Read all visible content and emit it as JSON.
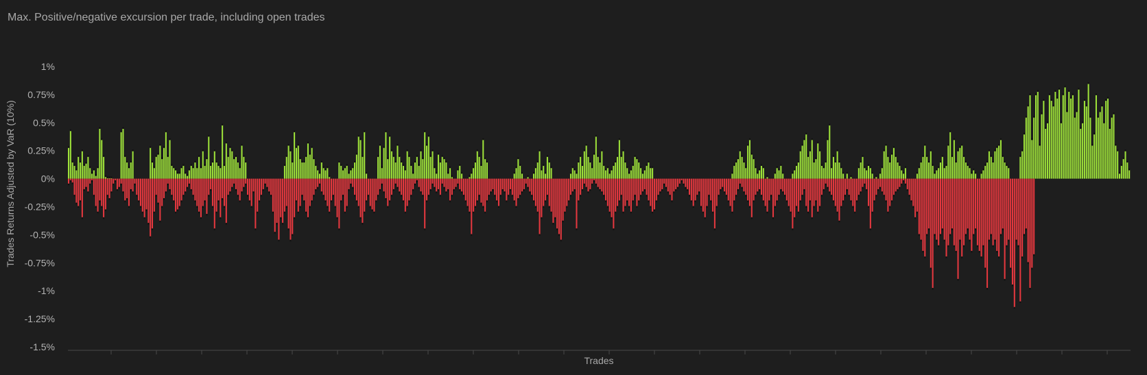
{
  "chart_data": {
    "type": "bar",
    "title": "Max. Positive/negative excursion per trade, including open trades",
    "xlabel": "Trades",
    "ylabel": "Trades Returns Adjusted by VaR (10%)",
    "ylim": [
      -1.5,
      1.0
    ],
    "yticks": [
      {
        "value": 1.0,
        "label": "1%"
      },
      {
        "value": 0.75,
        "label": "0.75%"
      },
      {
        "value": 0.5,
        "label": "0.5%"
      },
      {
        "value": 0.25,
        "label": "0.25%"
      },
      {
        "value": 0.0,
        "label": "0%"
      },
      {
        "value": -0.25,
        "label": "-0.25%"
      },
      {
        "value": -0.5,
        "label": "-0.5%"
      },
      {
        "value": -0.75,
        "label": "-0.75%"
      },
      {
        "value": -1.0,
        "label": "-1%"
      },
      {
        "value": -1.25,
        "label": "-1.25%"
      },
      {
        "value": -1.5,
        "label": "-1.5%"
      }
    ],
    "grid": false,
    "colors": {
      "positive": "#9ee23a",
      "negative": "#e5383f",
      "marker": "#111111",
      "axis": "#4a4a4a"
    },
    "series": [
      {
        "values": [
          0.28,
          0.43,
          0.15,
          0.12,
          0.08,
          0.2,
          0.15,
          0.25,
          0.12,
          0.14,
          0.2,
          0.1,
          0.05,
          0.08,
          0.03,
          0.1,
          0.45,
          0.35,
          0.2,
          0.02,
          0.01,
          0.01,
          0.01,
          0.0,
          0.0,
          0.0,
          0.0,
          0.42,
          0.45,
          0.2,
          0.15,
          0.1,
          0.15,
          0.25,
          0.0,
          0.0,
          0.0,
          0.0,
          0.0,
          0.0,
          0.0,
          0.0,
          0.28,
          0.15,
          0.1,
          0.2,
          0.22,
          0.3,
          0.18,
          0.28,
          0.42,
          0.2,
          0.35,
          0.12,
          0.1,
          0.08,
          0.05,
          0.05,
          0.1,
          0.12,
          0.05,
          0.03,
          0.08,
          0.12,
          0.1,
          0.15,
          0.1,
          0.2,
          0.1,
          0.25,
          0.12,
          0.18,
          0.38,
          0.12,
          0.15,
          0.25,
          0.15,
          0.12,
          0.1,
          0.48,
          0.12,
          0.32,
          0.2,
          0.28,
          0.25,
          0.18,
          0.2,
          0.15,
          0.1,
          0.3,
          0.2,
          0.15,
          0.0,
          0.0,
          0.0,
          0.0,
          0.0,
          0.0,
          0.0,
          0.0,
          0.0,
          0.0,
          0.0,
          0.0,
          0.0,
          0.0,
          0.0,
          0.0,
          0.0,
          0.0,
          0.0,
          0.12,
          0.2,
          0.3,
          0.25,
          0.15,
          0.42,
          0.28,
          0.3,
          0.18,
          0.15,
          0.15,
          0.2,
          0.32,
          0.22,
          0.28,
          0.18,
          0.12,
          0.08,
          0.05,
          0.15,
          0.1,
          0.08,
          0.1,
          0.02,
          0.0,
          0.0,
          0.0,
          0.0,
          0.15,
          0.12,
          0.08,
          0.1,
          0.12,
          0.05,
          0.08,
          0.1,
          0.15,
          0.22,
          0.38,
          0.35,
          0.2,
          0.42,
          0.05,
          0.0,
          0.0,
          0.0,
          0.0,
          0.0,
          0.2,
          0.3,
          0.1,
          0.28,
          0.42,
          0.18,
          0.38,
          0.25,
          0.2,
          0.15,
          0.3,
          0.2,
          0.15,
          0.12,
          0.08,
          0.25,
          0.2,
          0.12,
          0.05,
          0.15,
          0.2,
          0.12,
          0.25,
          0.18,
          0.42,
          0.3,
          0.38,
          0.2,
          0.25,
          0.1,
          0.05,
          0.22,
          0.15,
          0.2,
          0.18,
          0.15,
          0.05,
          0.1,
          0.02,
          0.0,
          0.0,
          0.08,
          0.12,
          0.05,
          0.0,
          0.0,
          0.0,
          0.02,
          0.05,
          0.1,
          0.15,
          0.25,
          0.2,
          0.12,
          0.35,
          0.18,
          0.15,
          0.0,
          0.0,
          0.0,
          0.0,
          0.0,
          0.0,
          0.0,
          0.0,
          0.0,
          0.0,
          0.0,
          0.0,
          0.0,
          0.05,
          0.1,
          0.18,
          0.12,
          0.05,
          0.0,
          0.0,
          0.02,
          0.0,
          0.0,
          0.05,
          0.1,
          0.15,
          0.25,
          0.08,
          0.12,
          0.05,
          0.2,
          0.15,
          0.1,
          0.0,
          0.0,
          0.0,
          0.0,
          0.0,
          0.0,
          0.0,
          0.0,
          0.0,
          0.05,
          0.1,
          0.08,
          0.05,
          0.15,
          0.2,
          0.12,
          0.25,
          0.3,
          0.2,
          0.15,
          0.1,
          0.22,
          0.38,
          0.2,
          0.15,
          0.25,
          0.12,
          0.08,
          0.1,
          0.05,
          0.08,
          0.12,
          0.15,
          0.2,
          0.35,
          0.2,
          0.25,
          0.15,
          0.1,
          0.05,
          0.08,
          0.12,
          0.2,
          0.18,
          0.15,
          0.1,
          0.05,
          0.08,
          0.12,
          0.15,
          0.1,
          0.1,
          0.0,
          0.0,
          0.0,
          0.0,
          0.0,
          0.0,
          0.0,
          0.0,
          0.0,
          0.0,
          0.0,
          0.0,
          0.0,
          0.0,
          0.0,
          0.0,
          0.0,
          0.0,
          0.0,
          0.0,
          0.0,
          0.0,
          0.0,
          0.0,
          0.0,
          0.0,
          0.0,
          0.0,
          0.0,
          0.0,
          0.0,
          0.0,
          0.0,
          0.0,
          0.0,
          0.0,
          0.0,
          0.0,
          0.0,
          0.0,
          0.05,
          0.12,
          0.15,
          0.18,
          0.25,
          0.2,
          0.15,
          0.1,
          0.3,
          0.35,
          0.22,
          0.18,
          0.1,
          0.05,
          0.08,
          0.12,
          0.1,
          0.0,
          0.02,
          0.0,
          0.0,
          0.0,
          0.05,
          0.1,
          0.08,
          0.12,
          0.05,
          0.0,
          0.0,
          0.0,
          0.0,
          0.05,
          0.08,
          0.12,
          0.15,
          0.25,
          0.3,
          0.35,
          0.4,
          0.2,
          0.25,
          0.35,
          0.15,
          0.18,
          0.32,
          0.25,
          0.12,
          0.1,
          0.15,
          0.35,
          0.48,
          0.1,
          0.2,
          0.15,
          0.25,
          0.15,
          0.1,
          0.05,
          0.0,
          0.05,
          0.0,
          0.02,
          0.0,
          0.0,
          0.0,
          0.1,
          0.15,
          0.2,
          0.1,
          0.08,
          0.12,
          0.1,
          0.05,
          0.0,
          0.02,
          0.0,
          0.05,
          0.1,
          0.25,
          0.3,
          0.2,
          0.15,
          0.22,
          0.28,
          0.2,
          0.15,
          0.12,
          0.08,
          0.05,
          0.1,
          0.0,
          0.0,
          0.0,
          0.0,
          0.0,
          0.05,
          0.1,
          0.15,
          0.2,
          0.3,
          0.2,
          0.15,
          0.25,
          0.12,
          0.05,
          0.08,
          0.1,
          0.15,
          0.2,
          0.1,
          0.12,
          0.3,
          0.42,
          0.2,
          0.35,
          0.15,
          0.25,
          0.28,
          0.3,
          0.2,
          0.15,
          0.12,
          0.1,
          0.05,
          0.08,
          0.05,
          0.0,
          0.0,
          0.05,
          0.08,
          0.12,
          0.15,
          0.25,
          0.2,
          0.15,
          0.25,
          0.28,
          0.3,
          0.35,
          0.2,
          0.15,
          0.12,
          0.1,
          0.0,
          0.0,
          0.0,
          0.0,
          0.0,
          0.2,
          0.25,
          0.4,
          0.55,
          0.65,
          0.75,
          0.35,
          0.55,
          0.75,
          0.78,
          0.3,
          0.58,
          0.7,
          0.45,
          0.5,
          0.75,
          0.7,
          0.65,
          0.78,
          0.72,
          0.8,
          0.5,
          0.75,
          0.82,
          0.6,
          0.78,
          0.72,
          0.75,
          0.55,
          0.6,
          0.8,
          0.45,
          0.5,
          0.7,
          0.65,
          0.85,
          0.55,
          0.3,
          0.4,
          0.75,
          0.55,
          0.6,
          0.65,
          0.5,
          0.7,
          0.72,
          0.45,
          0.55,
          0.58,
          0.3,
          0.25,
          0.05,
          0.12,
          0.18,
          0.25,
          0.15,
          0.08
        ]
      },
      {
        "values": [
          -0.05,
          -0.02,
          -0.04,
          -0.15,
          -0.22,
          -0.25,
          -0.2,
          -0.35,
          -0.1,
          -0.08,
          -0.12,
          -0.05,
          -0.02,
          -0.15,
          -0.25,
          -0.3,
          -0.2,
          -0.25,
          -0.35,
          -0.28,
          -0.15,
          -0.18,
          -0.12,
          -0.05,
          -0.02,
          -0.1,
          -0.08,
          -0.05,
          -0.12,
          -0.2,
          -0.18,
          -0.25,
          -0.1,
          -0.12,
          -0.05,
          -0.15,
          -0.2,
          -0.25,
          -0.3,
          -0.35,
          -0.28,
          -0.4,
          -0.52,
          -0.45,
          -0.3,
          -0.15,
          -0.22,
          -0.38,
          -0.25,
          -0.18,
          -0.12,
          -0.05,
          -0.1,
          -0.15,
          -0.2,
          -0.3,
          -0.28,
          -0.25,
          -0.2,
          -0.15,
          -0.12,
          -0.08,
          -0.05,
          -0.1,
          -0.15,
          -0.2,
          -0.25,
          -0.3,
          -0.35,
          -0.25,
          -0.2,
          -0.32,
          -0.15,
          -0.1,
          -0.25,
          -0.45,
          -0.3,
          -0.2,
          -0.35,
          -0.18,
          -0.25,
          -0.4,
          -0.15,
          -0.12,
          -0.08,
          -0.05,
          -0.1,
          -0.15,
          -0.2,
          -0.12,
          -0.08,
          -0.05,
          -0.15,
          -0.2,
          -0.25,
          -0.12,
          -0.45,
          -0.3,
          -0.2,
          -0.15,
          -0.1,
          -0.05,
          -0.08,
          -0.12,
          -0.15,
          -0.3,
          -0.48,
          -0.4,
          -0.55,
          -0.35,
          -0.4,
          -0.3,
          -0.25,
          -0.45,
          -0.55,
          -0.5,
          -0.35,
          -0.2,
          -0.3,
          -0.25,
          -0.15,
          -0.2,
          -0.3,
          -0.35,
          -0.25,
          -0.2,
          -0.15,
          -0.1,
          -0.08,
          -0.05,
          -0.12,
          -0.15,
          -0.2,
          -0.25,
          -0.3,
          -0.2,
          -0.15,
          -0.25,
          -0.35,
          -0.45,
          -0.2,
          -0.15,
          -0.3,
          -0.25,
          -0.1,
          -0.05,
          -0.08,
          -0.15,
          -0.2,
          -0.25,
          -0.35,
          -0.4,
          -0.3,
          -0.2,
          -0.15,
          -0.25,
          -0.28,
          -0.3,
          -0.2,
          -0.15,
          -0.1,
          -0.05,
          -0.12,
          -0.18,
          -0.25,
          -0.2,
          -0.15,
          -0.1,
          -0.05,
          -0.08,
          -0.12,
          -0.15,
          -0.2,
          -0.3,
          -0.25,
          -0.2,
          -0.15,
          -0.1,
          -0.05,
          -0.02,
          -0.08,
          -0.12,
          -0.15,
          -0.45,
          -0.2,
          -0.15,
          -0.1,
          -0.05,
          -0.08,
          -0.12,
          -0.1,
          -0.15,
          -0.05,
          -0.08,
          -0.12,
          -0.1,
          -0.2,
          -0.15,
          -0.1,
          -0.08,
          -0.05,
          -0.1,
          -0.12,
          -0.15,
          -0.2,
          -0.25,
          -0.3,
          -0.5,
          -0.3,
          -0.25,
          -0.2,
          -0.15,
          -0.22,
          -0.25,
          -0.3,
          -0.2,
          -0.15,
          -0.12,
          -0.1,
          -0.15,
          -0.2,
          -0.25,
          -0.15,
          -0.1,
          -0.12,
          -0.2,
          -0.15,
          -0.1,
          -0.15,
          -0.2,
          -0.25,
          -0.18,
          -0.15,
          -0.12,
          -0.1,
          -0.05,
          -0.08,
          -0.12,
          -0.15,
          -0.2,
          -0.25,
          -0.3,
          -0.5,
          -0.35,
          -0.25,
          -0.2,
          -0.15,
          -0.25,
          -0.3,
          -0.4,
          -0.35,
          -0.45,
          -0.5,
          -0.55,
          -0.38,
          -0.3,
          -0.25,
          -0.2,
          -0.15,
          -0.12,
          -0.1,
          -0.45,
          -0.2,
          -0.15,
          -0.1,
          -0.05,
          -0.08,
          -0.12,
          -0.1,
          -0.05,
          -0.02,
          -0.05,
          -0.08,
          -0.1,
          -0.12,
          -0.15,
          -0.2,
          -0.25,
          -0.3,
          -0.35,
          -0.45,
          -0.3,
          -0.25,
          -0.2,
          -0.15,
          -0.3,
          -0.25,
          -0.2,
          -0.25,
          -0.3,
          -0.2,
          -0.15,
          -0.25,
          -0.2,
          -0.15,
          -0.12,
          -0.1,
          -0.15,
          -0.2,
          -0.25,
          -0.3,
          -0.28,
          -0.2,
          -0.15,
          -0.12,
          -0.1,
          -0.05,
          -0.08,
          -0.12,
          -0.15,
          -0.2,
          -0.12,
          -0.1,
          -0.08,
          -0.05,
          -0.02,
          -0.05,
          -0.08,
          -0.1,
          -0.15,
          -0.2,
          -0.25,
          -0.2,
          -0.15,
          -0.12,
          -0.25,
          -0.3,
          -0.35,
          -0.25,
          -0.15,
          -0.2,
          -0.3,
          -0.45,
          -0.25,
          -0.15,
          -0.1,
          -0.08,
          -0.12,
          -0.15,
          -0.2,
          -0.25,
          -0.3,
          -0.2,
          -0.15,
          -0.1,
          -0.05,
          -0.08,
          -0.12,
          -0.15,
          -0.2,
          -0.25,
          -0.35,
          -0.2,
          -0.15,
          -0.12,
          -0.1,
          -0.15,
          -0.2,
          -0.25,
          -0.3,
          -0.2,
          -0.15,
          -0.35,
          -0.25,
          -0.2,
          -0.15,
          -0.1,
          -0.12,
          -0.15,
          -0.2,
          -0.25,
          -0.3,
          -0.45,
          -0.35,
          -0.25,
          -0.3,
          -0.2,
          -0.15,
          -0.1,
          -0.25,
          -0.3,
          -0.2,
          -0.35,
          -0.25,
          -0.2,
          -0.3,
          -0.25,
          -0.15,
          -0.1,
          -0.05,
          -0.08,
          -0.12,
          -0.15,
          -0.2,
          -0.25,
          -0.3,
          -0.38,
          -0.25,
          -0.2,
          -0.15,
          -0.1,
          -0.15,
          -0.2,
          -0.25,
          -0.3,
          -0.2,
          -0.15,
          -0.12,
          -0.08,
          -0.05,
          -0.1,
          -0.25,
          -0.45,
          -0.3,
          -0.2,
          -0.15,
          -0.1,
          -0.08,
          -0.12,
          -0.15,
          -0.2,
          -0.3,
          -0.25,
          -0.2,
          -0.15,
          -0.12,
          -0.1,
          -0.08,
          -0.05,
          -0.02,
          -0.05,
          -0.1,
          -0.15,
          -0.2,
          -0.25,
          -0.35,
          -0.3,
          -0.5,
          -0.55,
          -0.65,
          -0.7,
          -0.5,
          -0.45,
          -0.8,
          -0.98,
          -0.5,
          -0.55,
          -0.6,
          -0.5,
          -0.45,
          -0.55,
          -0.7,
          -0.6,
          -0.5,
          -0.45,
          -0.6,
          -0.65,
          -0.9,
          -0.55,
          -0.7,
          -0.6,
          -0.5,
          -0.45,
          -0.55,
          -0.65,
          -0.5,
          -0.45,
          -0.6,
          -0.65,
          -0.7,
          -0.6,
          -0.8,
          -0.98,
          -0.55,
          -0.5,
          -0.6,
          -0.55,
          -0.65,
          -0.7,
          -0.5,
          -0.45,
          -0.9,
          -0.6,
          -0.55,
          -0.8,
          -0.95,
          -1.15,
          -0.55,
          -0.6,
          -1.1,
          -0.7,
          -0.5,
          -0.45,
          -0.75,
          -0.98,
          -0.8,
          -0.68
        ]
      }
    ]
  }
}
